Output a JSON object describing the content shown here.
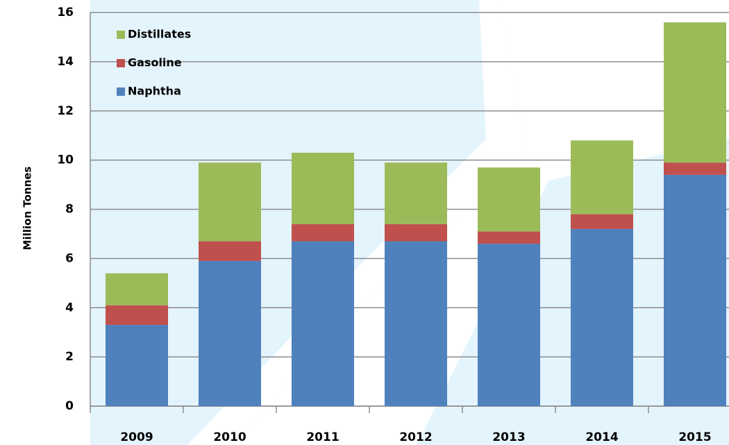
{
  "chart_data": {
    "type": "stacked_bar",
    "y_label": "Million Tonnes",
    "categories": [
      "2009",
      "2010",
      "2011",
      "2012",
      "2013",
      "2014",
      "2015"
    ],
    "series": [
      {
        "name": "Naphtha",
        "color": "#4f81bd",
        "values": [
          3.3,
          5.9,
          6.7,
          6.7,
          6.6,
          7.2,
          9.4
        ]
      },
      {
        "name": "Gasoline",
        "color": "#c0504d",
        "values": [
          0.8,
          0.8,
          0.7,
          0.7,
          0.5,
          0.6,
          0.5
        ]
      },
      {
        "name": "Distillates",
        "color": "#9bbb59",
        "values": [
          1.3,
          3.2,
          2.9,
          2.5,
          2.6,
          3.0,
          5.7
        ]
      }
    ],
    "ylim": [
      0,
      16
    ],
    "yticks": [
      0,
      2,
      4,
      6,
      8,
      10,
      12,
      14,
      16
    ],
    "grid": true,
    "legend": "top-left"
  }
}
